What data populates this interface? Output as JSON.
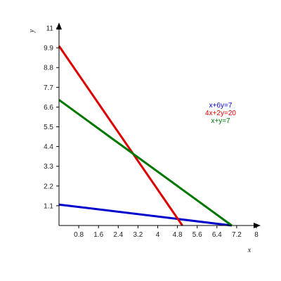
{
  "chart_data": {
    "type": "line",
    "xlabel": "x",
    "ylabel": "y",
    "xlim": [
      0,
      8
    ],
    "ylim": [
      0,
      11
    ],
    "x_ticks": [
      "0.8",
      "1.6",
      "2.4",
      "3.2",
      "4",
      "4.8",
      "5.6",
      "6.4",
      "7.2",
      "8"
    ],
    "y_ticks": [
      "1.1",
      "2.2",
      "3.3",
      "4.4",
      "5.5",
      "6.6",
      "7.7",
      "8.8",
      "9.9",
      "11"
    ],
    "grid": false,
    "legend_position": "right",
    "series": [
      {
        "name": "x+6y=7",
        "color": "#0000cc",
        "x": [
          0,
          7
        ],
        "y": [
          1.1667,
          0
        ]
      },
      {
        "name": "4x+2y=20",
        "color": "#dd0000",
        "x": [
          0,
          5
        ],
        "y": [
          10,
          0
        ]
      },
      {
        "name": "x+y=7",
        "color": "#007700",
        "x": [
          0,
          7
        ],
        "y": [
          7,
          0
        ]
      }
    ]
  }
}
